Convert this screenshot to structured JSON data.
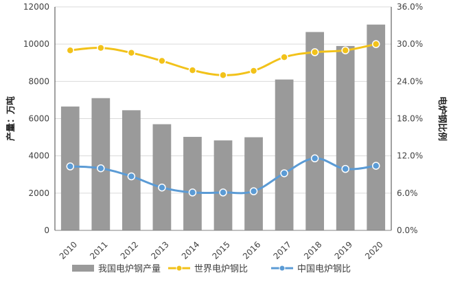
{
  "chart_data": {
    "type": "bar+line",
    "categories": [
      "2010",
      "2011",
      "2012",
      "2013",
      "2014",
      "2015",
      "2016",
      "2017",
      "2018",
      "2019",
      "2020"
    ],
    "left_axis": {
      "label": "产量：万吨",
      "ylim": [
        0,
        12000
      ],
      "ticks": [
        "0",
        "2000",
        "4000",
        "6000",
        "8000",
        "10000",
        "12000"
      ]
    },
    "right_axis": {
      "label": "电炉钢比例",
      "ylim": [
        0,
        36
      ],
      "ticks": [
        "0.0%",
        "6.0%",
        "12.0%",
        "18.0%",
        "24.0%",
        "30.0%",
        "36.0%"
      ]
    },
    "series": [
      {
        "name": "我国电炉钢产量",
        "type": "bar",
        "axis": "left",
        "color": "#9a9a9a",
        "values": [
          6650,
          7100,
          6450,
          5700,
          5020,
          4830,
          5000,
          8100,
          10650,
          9900,
          11050
        ]
      },
      {
        "name": "世界电炉钢比",
        "type": "line",
        "axis": "right",
        "color": "#f2c21a",
        "values": [
          29.0,
          29.4,
          28.6,
          27.3,
          25.8,
          25.0,
          25.7,
          27.9,
          28.7,
          29.0,
          30.0
        ]
      },
      {
        "name": "中国电炉钢比",
        "type": "line",
        "axis": "right",
        "color": "#5b9bd5",
        "values": [
          10.3,
          10.0,
          8.7,
          6.9,
          6.1,
          6.1,
          6.3,
          9.2,
          11.6,
          9.9,
          10.4
        ]
      }
    ],
    "grid": "horizontal",
    "legend": "bottom"
  }
}
